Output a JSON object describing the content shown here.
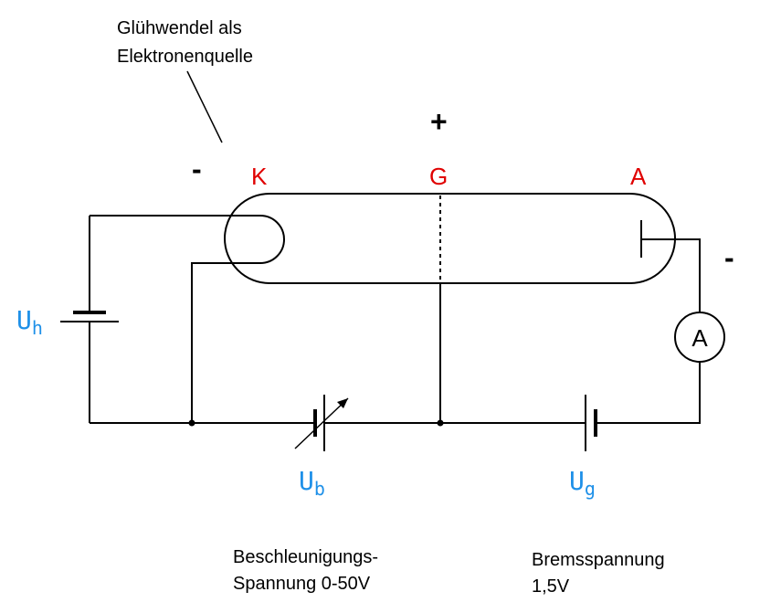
{
  "colors": {
    "line": "#000000",
    "electrode_label": "#e00000",
    "voltage_label": "#1e90e8"
  },
  "notes": {
    "filament_line1": "Glühwendel als",
    "filament_line2": "Elektronenquelle",
    "accel_line1": "Beschleunigungs-",
    "accel_line2": "Spannung 0-50V",
    "brake_line1": "Bremsspannung",
    "brake_line2": "1,5V"
  },
  "signs": {
    "cathode_minus": "-",
    "grid_plus": "+",
    "anode_minus": "-"
  },
  "electrodes": {
    "cathode": "K",
    "grid": "G",
    "anode": "A"
  },
  "voltages": {
    "heater": {
      "main": "U",
      "sub": "h"
    },
    "accel": {
      "main": "U",
      "sub": "b"
    },
    "brake": {
      "main": "U",
      "sub": "g"
    }
  },
  "meter": {
    "symbol": "A",
    "icon": "ammeter-icon"
  }
}
